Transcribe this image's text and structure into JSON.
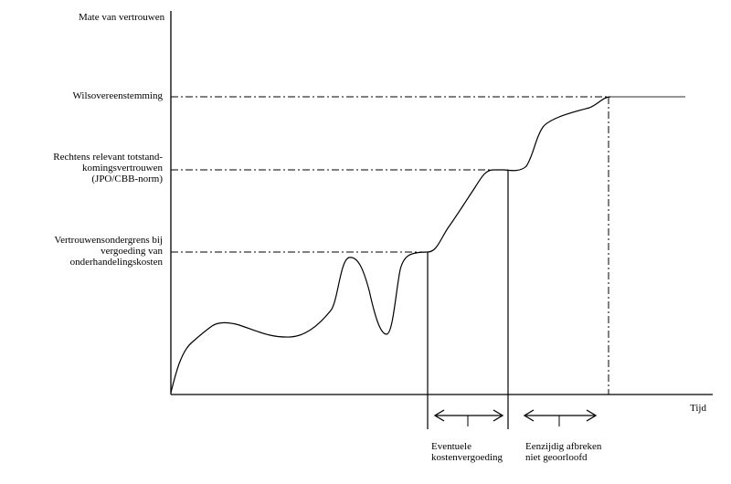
{
  "y_axis_title": "Mate van vertrouwen",
  "x_axis_title": "Tijd",
  "levels": [
    {
      "lines": [
        "Wilsovereenstemming"
      ]
    },
    {
      "lines": [
        "Rechtens relevant totstand-",
        "komingsvertrouwen",
        "(JPO/CBB-norm)"
      ]
    },
    {
      "lines": [
        "Vertrouwensondergrens bij",
        "vergoeding van",
        "onderhandelingskosten"
      ]
    }
  ],
  "phases": [
    {
      "lines": [
        "Eventuele",
        "kostenvergoeding"
      ]
    },
    {
      "lines": [
        "Eenzijdig afbreken",
        "niet geoorloofd"
      ]
    }
  ]
}
